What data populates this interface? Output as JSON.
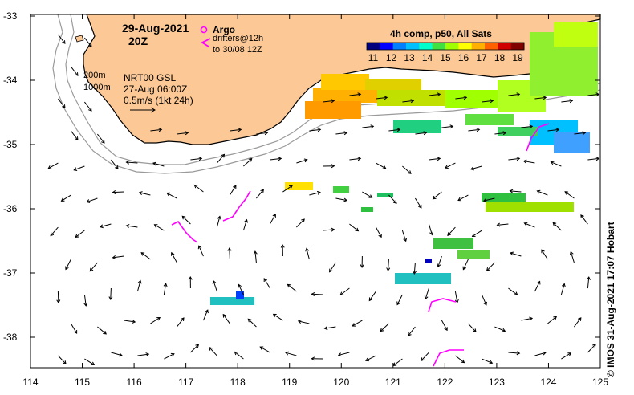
{
  "title_date": "29-Aug-2021",
  "title_hour": "20Z",
  "argo_label": "Argo",
  "drifters_line1": "drifters@12h",
  "drifters_line2": "to 30/08 12Z",
  "colorbar_title": "4h comp, p50, All Sats",
  "colorbar_ticks": [
    "11",
    "12",
    "13",
    "14",
    "15",
    "16",
    "17",
    "18",
    "19"
  ],
  "colorbar_colors": [
    "#00007f",
    "#0000ff",
    "#0080ff",
    "#00c0ff",
    "#00ffcc",
    "#40e040",
    "#a0ff00",
    "#ffff00",
    "#ffb000",
    "#ff6000",
    "#d00000",
    "#800000"
  ],
  "isobath_200": "200m",
  "isobath_1000": "1000m",
  "product_line1": "NRT00 GSL",
  "product_line2": "27-Aug 06:00Z",
  "scale_label": "0.5m/s (1kt 24h)",
  "credit": "© IMOS 31-Aug-2021 17:07 Hobart",
  "lat_ticks": [
    "-33",
    "-34",
    "-35",
    "-36",
    "-37",
    "-38"
  ],
  "lon_ticks": [
    "114",
    "115",
    "116",
    "117",
    "118",
    "119",
    "120",
    "121",
    "122",
    "123",
    "124",
    "125"
  ],
  "colors": {
    "land": "#fcc896",
    "coast": "#000000",
    "isobath": "#9a9a9a",
    "drifter": "#ff00ff",
    "vector": "#000000"
  }
}
